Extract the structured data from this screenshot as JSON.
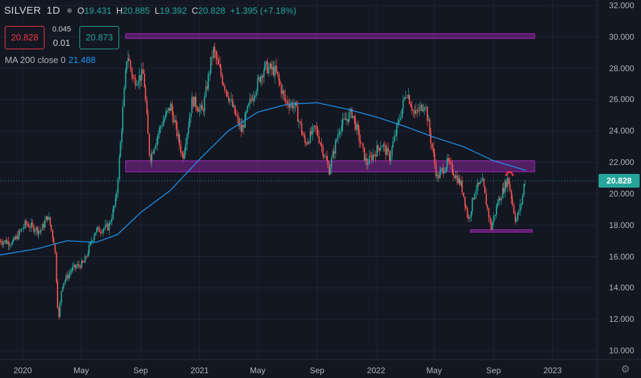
{
  "header": {
    "symbol": "SILVER",
    "interval": "1D",
    "open_label": "O",
    "open": "19.431",
    "high_label": "H",
    "high": "20.885",
    "low_label": "L",
    "low": "19.392",
    "close_label": "C",
    "close": "20.828",
    "change": "+1.395 (+7.18%)"
  },
  "trade": {
    "sell": "20.828",
    "spread_top": "0.045",
    "spread": "0.01",
    "buy": "20.873"
  },
  "indicator": {
    "label": "MA 200 close 0",
    "value": "21.488"
  },
  "last_price": "20.828",
  "colors": {
    "background": "#131722",
    "up": "#26a69a",
    "down": "#ef5350",
    "ma": "#2196f3",
    "zone": "#9c27b0"
  },
  "chart_data": {
    "type": "line",
    "title": "",
    "xlabel": "",
    "ylabel": "",
    "ylim": [
      9.5,
      32.3
    ],
    "x_ticks": [
      "2020",
      "May",
      "Sep",
      "2021",
      "May",
      "Sep",
      "2022",
      "May",
      "Sep",
      "2023"
    ],
    "y_ticks": [
      "32.000",
      "30.000",
      "28.000",
      "26.000",
      "24.000",
      "22.000",
      "20.000",
      "18.000",
      "16.000",
      "14.000",
      "12.000",
      "10.000"
    ],
    "price_path": [
      [
        "2019-11-15",
        17.0
      ],
      [
        "2019-12-15",
        16.9
      ],
      [
        "2020-01-10",
        18.1
      ],
      [
        "2020-02-10",
        17.6
      ],
      [
        "2020-02-25",
        18.6
      ],
      [
        "2020-03-10",
        16.8
      ],
      [
        "2020-03-18",
        11.8
      ],
      [
        "2020-03-25",
        14.2
      ],
      [
        "2020-04-15",
        15.2
      ],
      [
        "2020-05-10",
        15.6
      ],
      [
        "2020-06-01",
        17.6
      ],
      [
        "2020-06-30",
        17.9
      ],
      [
        "2020-07-15",
        19.6
      ],
      [
        "2020-07-25",
        23.5
      ],
      [
        "2020-08-07",
        29.0
      ],
      [
        "2020-08-20",
        27.2
      ],
      [
        "2020-09-10",
        27.6
      ],
      [
        "2020-09-23",
        22.2
      ],
      [
        "2020-10-15",
        24.3
      ],
      [
        "2020-11-05",
        25.6
      ],
      [
        "2020-11-30",
        22.3
      ],
      [
        "2020-12-20",
        26.0
      ],
      [
        "2021-01-10",
        25.2
      ],
      [
        "2021-02-01",
        29.2
      ],
      [
        "2021-02-20",
        27.3
      ],
      [
        "2021-03-31",
        24.0
      ],
      [
        "2021-04-20",
        26.0
      ],
      [
        "2021-05-18",
        28.1
      ],
      [
        "2021-06-10",
        27.8
      ],
      [
        "2021-06-30",
        25.9
      ],
      [
        "2021-07-20",
        25.6
      ],
      [
        "2021-08-10",
        23.2
      ],
      [
        "2021-09-01",
        24.2
      ],
      [
        "2021-09-29",
        21.5
      ],
      [
        "2021-10-20",
        24.2
      ],
      [
        "2021-11-15",
        25.2
      ],
      [
        "2021-12-15",
        21.9
      ],
      [
        "2022-01-15",
        23.2
      ],
      [
        "2022-02-01",
        22.3
      ],
      [
        "2022-03-08",
        26.6
      ],
      [
        "2022-03-25",
        25.0
      ],
      [
        "2022-04-15",
        25.8
      ],
      [
        "2022-05-10",
        21.0
      ],
      [
        "2022-06-01",
        22.0
      ],
      [
        "2022-06-30",
        20.5
      ],
      [
        "2022-07-14",
        18.3
      ],
      [
        "2022-07-28",
        20.3
      ],
      [
        "2022-08-12",
        20.7
      ],
      [
        "2022-08-30",
        17.8
      ],
      [
        "2022-09-12",
        19.4
      ],
      [
        "2022-10-04",
        21.0
      ],
      [
        "2022-10-20",
        18.2
      ],
      [
        "2022-11-02",
        19.6
      ],
      [
        "2022-11-07",
        20.828
      ]
    ],
    "ma_path": [
      [
        "2019-11-15",
        16.1
      ],
      [
        "2020-02-01",
        16.5
      ],
      [
        "2020-04-01",
        17.0
      ],
      [
        "2020-06-01",
        16.9
      ],
      [
        "2020-07-15",
        17.4
      ],
      [
        "2020-09-01",
        18.8
      ],
      [
        "2020-11-01",
        20.2
      ],
      [
        "2021-01-01",
        22.2
      ],
      [
        "2021-03-01",
        24.0
      ],
      [
        "2021-05-01",
        25.2
      ],
      [
        "2021-07-01",
        25.7
      ],
      [
        "2021-09-01",
        25.8
      ],
      [
        "2021-11-01",
        25.4
      ],
      [
        "2022-01-01",
        24.9
      ],
      [
        "2022-03-01",
        24.3
      ],
      [
        "2022-05-01",
        23.6
      ],
      [
        "2022-07-01",
        23.0
      ],
      [
        "2022-09-01",
        22.1
      ],
      [
        "2022-11-07",
        21.488
      ]
    ],
    "zones": [
      {
        "from": "2020-08-01",
        "to": "2022-11-25",
        "low": 29.9,
        "high": 30.2
      },
      {
        "from": "2020-08-01",
        "to": "2022-11-25",
        "low": 21.4,
        "high": 22.1
      },
      {
        "from": "2022-07-15",
        "to": "2022-11-20",
        "low": 17.55,
        "high": 17.7
      }
    ],
    "grid": true,
    "legend": "none"
  }
}
